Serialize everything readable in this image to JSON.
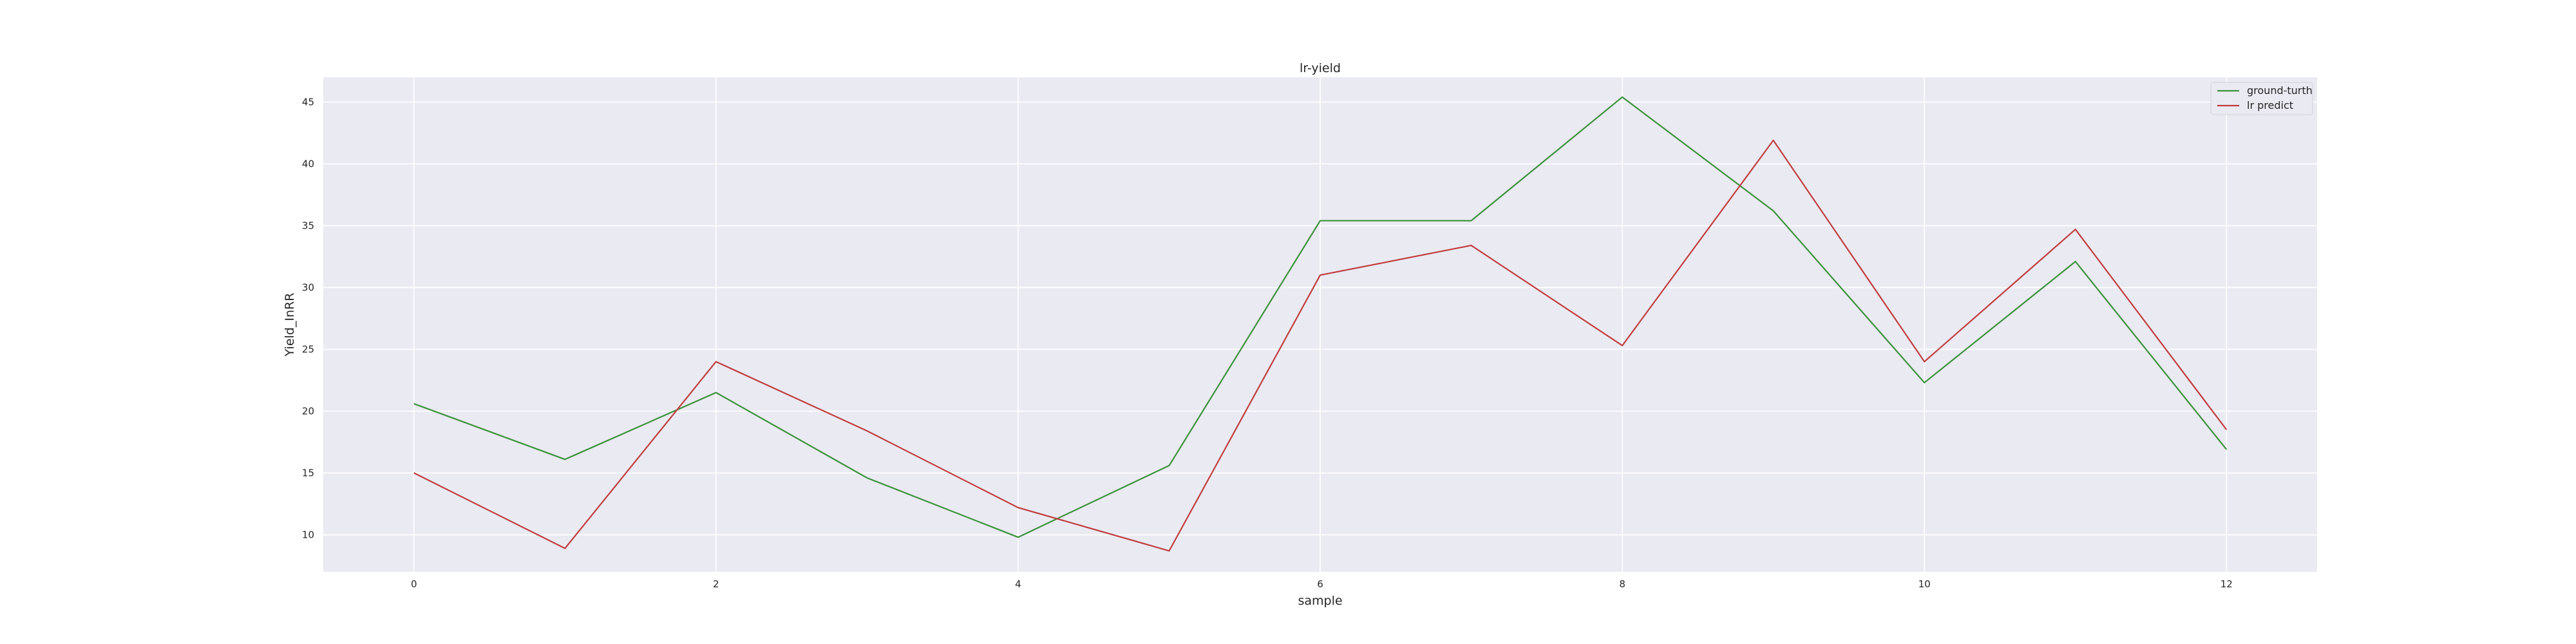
{
  "chart_data": {
    "type": "line",
    "title": "lr-yield",
    "xlabel": "sample",
    "ylabel": "Yield_InRR",
    "x": [
      0,
      1,
      2,
      3,
      4,
      5,
      6,
      7,
      8,
      9,
      10,
      11,
      12
    ],
    "xlim": [
      -0.6,
      12.6
    ],
    "ylim": [
      7,
      47
    ],
    "xticks": [
      0,
      2,
      4,
      6,
      8,
      10,
      12
    ],
    "yticks": [
      10,
      15,
      20,
      25,
      30,
      35,
      40,
      45
    ],
    "grid": true,
    "legend_position": "top-right",
    "background_color": "#eaeaf2",
    "series": [
      {
        "name": "ground-turth",
        "color": "#3a923a",
        "values": [
          20.6,
          16.1,
          21.5,
          14.6,
          9.8,
          15.6,
          35.4,
          35.4,
          45.4,
          36.2,
          22.3,
          32.1,
          16.9
        ]
      },
      {
        "name": "lr predict",
        "color": "#c03d3e",
        "values": [
          15.0,
          8.9,
          24.0,
          18.4,
          12.2,
          8.7,
          31.0,
          33.4,
          25.3,
          41.9,
          24.0,
          34.7,
          18.5
        ]
      }
    ]
  }
}
